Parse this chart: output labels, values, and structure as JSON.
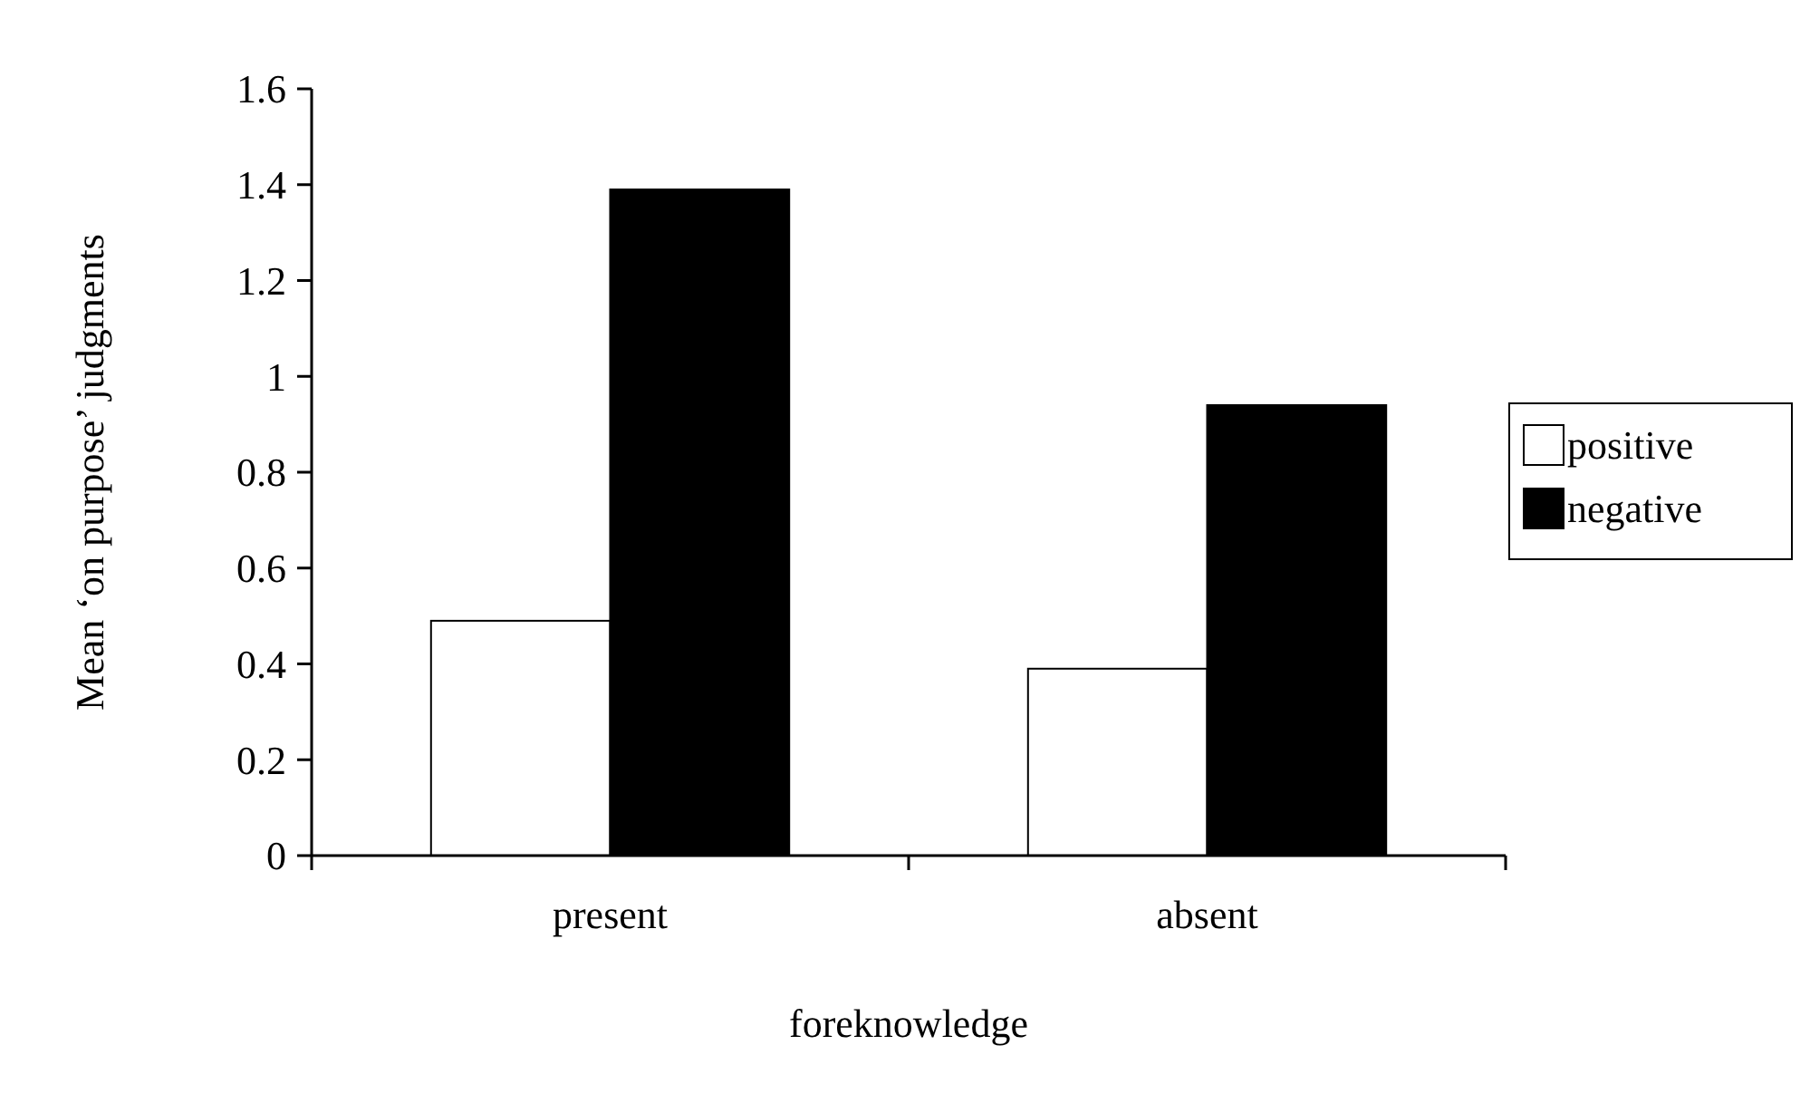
{
  "chart_data": {
    "type": "bar",
    "xlabel": "foreknowledge",
    "ylabel": "Mean ‘on purpose’ judgments",
    "categories": [
      "present",
      "absent"
    ],
    "series": [
      {
        "name": "positive",
        "color": "#ffffff",
        "values": [
          0.49,
          0.39
        ]
      },
      {
        "name": "negative",
        "color": "#000000",
        "values": [
          1.39,
          0.94
        ]
      }
    ],
    "ylim": [
      0,
      1.6
    ],
    "yticks": [
      0,
      0.2,
      0.4,
      0.6,
      0.8,
      1,
      1.2,
      1.4,
      1.6
    ],
    "legend": "right",
    "grid": false
  }
}
